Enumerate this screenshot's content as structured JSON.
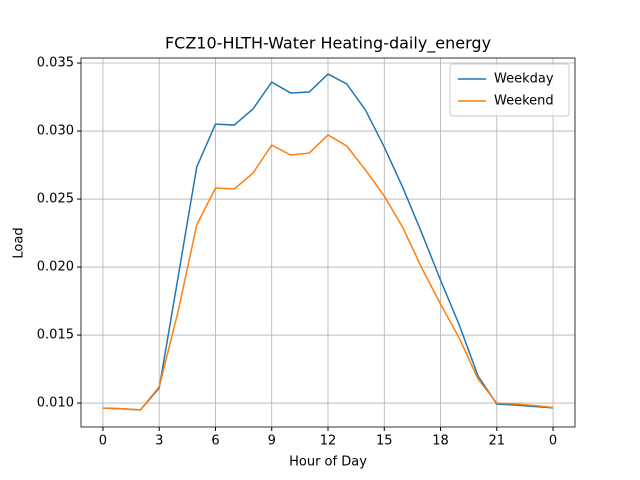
{
  "chart_data": {
    "type": "line",
    "title": "FCZ10-HLTH-Water Heating-daily_energy",
    "xlabel": "Hour of Day",
    "ylabel": "Load",
    "x": [
      0,
      1,
      2,
      3,
      4,
      5,
      6,
      7,
      8,
      9,
      10,
      11,
      12,
      13,
      14,
      15,
      16,
      17,
      18,
      19,
      20,
      21,
      22,
      23,
      24
    ],
    "series": [
      {
        "name": "Weekday",
        "color": "#1f77b4",
        "values": [
          0.00963,
          0.00958,
          0.0095,
          0.0111,
          0.0192,
          0.02735,
          0.03051,
          0.03044,
          0.03162,
          0.0336,
          0.0328,
          0.03287,
          0.03419,
          0.03346,
          0.03154,
          0.02882,
          0.02581,
          0.0225,
          0.01904,
          0.01574,
          0.01199,
          0.00993,
          0.00985,
          0.00975,
          0.00965
        ]
      },
      {
        "name": "Weekend",
        "color": "#ff7f0e",
        "values": [
          0.00963,
          0.00958,
          0.0095,
          0.0112,
          0.01669,
          0.02309,
          0.02581,
          0.02574,
          0.02691,
          0.02897,
          0.02824,
          0.02838,
          0.02971,
          0.0289,
          0.02713,
          0.02522,
          0.02287,
          0.01993,
          0.01728,
          0.01478,
          0.01176,
          0.01,
          0.00993,
          0.00982,
          0.00967
        ]
      }
    ],
    "xlim": [
      -1.17,
      25.17
    ],
    "ylim": [
      0.00824,
      0.03537
    ],
    "xticks": [
      0,
      3,
      6,
      9,
      12,
      15,
      18,
      21,
      {
        "value": 24,
        "label": "0"
      }
    ],
    "yticks": [
      {
        "value": 0.01,
        "label": "0.010"
      },
      {
        "value": 0.015,
        "label": "0.015"
      },
      {
        "value": 0.02,
        "label": "0.020"
      },
      {
        "value": 0.025,
        "label": "0.025"
      },
      {
        "value": 0.03,
        "label": "0.030"
      },
      {
        "value": 0.035,
        "label": "0.035"
      }
    ],
    "grid": true,
    "legend": "upper right"
  }
}
